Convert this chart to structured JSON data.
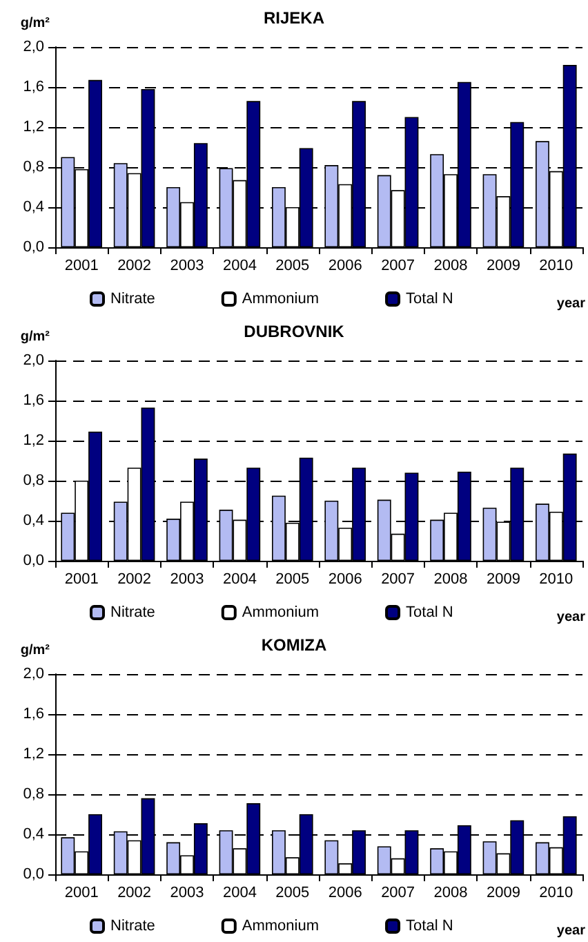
{
  "chart_data": [
    {
      "type": "bar",
      "title": "RIJEKA",
      "ylabel": "g/m²",
      "xlabel": "year",
      "categories": [
        "2001",
        "2002",
        "2003",
        "2004",
        "2005",
        "2006",
        "2007",
        "2008",
        "2009",
        "2010"
      ],
      "ylim": [
        0,
        2
      ],
      "yticks": [
        {
          "value": 0,
          "label": "0,0"
        },
        {
          "value": 0.4,
          "label": "0,4"
        },
        {
          "value": 0.8,
          "label": "0,8"
        },
        {
          "value": 1.2,
          "label": "1,2"
        },
        {
          "value": 1.6,
          "label": "1,6"
        },
        {
          "value": 2,
          "label": "2,0"
        }
      ],
      "grid": "y",
      "legend": "bottom",
      "series": [
        {
          "name": "Nitrate",
          "color": "#b3bbf2",
          "values": [
            0.9,
            0.84,
            0.6,
            0.79,
            0.6,
            0.82,
            0.72,
            0.93,
            0.73,
            1.06
          ]
        },
        {
          "name": "Ammonium",
          "color": "#ffffff",
          "values": [
            0.78,
            0.74,
            0.45,
            0.67,
            0.4,
            0.63,
            0.57,
            0.73,
            0.51,
            0.76
          ]
        },
        {
          "name": "Total N",
          "color": "#000080",
          "values": [
            1.67,
            1.58,
            1.04,
            1.46,
            0.99,
            1.46,
            1.3,
            1.65,
            1.25,
            1.82
          ]
        }
      ]
    },
    {
      "type": "bar",
      "title": "DUBROVNIK",
      "ylabel": "g/m²",
      "xlabel": "year",
      "categories": [
        "2001",
        "2002",
        "2003",
        "2004",
        "2005",
        "2006",
        "2007",
        "2008",
        "2009",
        "2010"
      ],
      "ylim": [
        0,
        2
      ],
      "yticks": [
        {
          "value": 0,
          "label": "0,0"
        },
        {
          "value": 0.4,
          "label": "0,4"
        },
        {
          "value": 0.8,
          "label": "0,8"
        },
        {
          "value": 1.2,
          "label": "1,2"
        },
        {
          "value": 1.6,
          "label": "1,6"
        },
        {
          "value": 2,
          "label": "2,0"
        }
      ],
      "grid": "y",
      "legend": "bottom",
      "series": [
        {
          "name": "Nitrate",
          "color": "#b3bbf2",
          "values": [
            0.48,
            0.59,
            0.42,
            0.51,
            0.65,
            0.6,
            0.61,
            0.41,
            0.53,
            0.57
          ]
        },
        {
          "name": "Ammonium",
          "color": "#ffffff",
          "values": [
            0.8,
            0.93,
            0.59,
            0.41,
            0.38,
            0.33,
            0.27,
            0.48,
            0.39,
            0.49
          ]
        },
        {
          "name": "Total N",
          "color": "#000080",
          "values": [
            1.29,
            1.53,
            1.02,
            0.93,
            1.03,
            0.93,
            0.88,
            0.89,
            0.93,
            1.07
          ]
        }
      ]
    },
    {
      "type": "bar",
      "title": "KOMIZA",
      "ylabel": "g/m²",
      "xlabel": "year",
      "categories": [
        "2001",
        "2002",
        "2003",
        "2004",
        "2005",
        "2006",
        "2007",
        "2008",
        "2009",
        "2010"
      ],
      "ylim": [
        0,
        2
      ],
      "yticks": [
        {
          "value": 0,
          "label": "0,0"
        },
        {
          "value": 0.4,
          "label": "0,4"
        },
        {
          "value": 0.8,
          "label": "0,8"
        },
        {
          "value": 1.2,
          "label": "1,2"
        },
        {
          "value": 1.6,
          "label": "1,6"
        },
        {
          "value": 2,
          "label": "2,0"
        }
      ],
      "grid": "y",
      "legend": "bottom",
      "series": [
        {
          "name": "Nitrate",
          "color": "#b3bbf2",
          "values": [
            0.37,
            0.43,
            0.32,
            0.44,
            0.44,
            0.34,
            0.28,
            0.26,
            0.33,
            0.32
          ]
        },
        {
          "name": "Ammonium",
          "color": "#ffffff",
          "values": [
            0.23,
            0.34,
            0.19,
            0.26,
            0.17,
            0.11,
            0.16,
            0.23,
            0.21,
            0.27
          ]
        },
        {
          "name": "Total N",
          "color": "#000080",
          "values": [
            0.6,
            0.76,
            0.51,
            0.71,
            0.6,
            0.44,
            0.44,
            0.49,
            0.54,
            0.58
          ]
        }
      ]
    }
  ]
}
